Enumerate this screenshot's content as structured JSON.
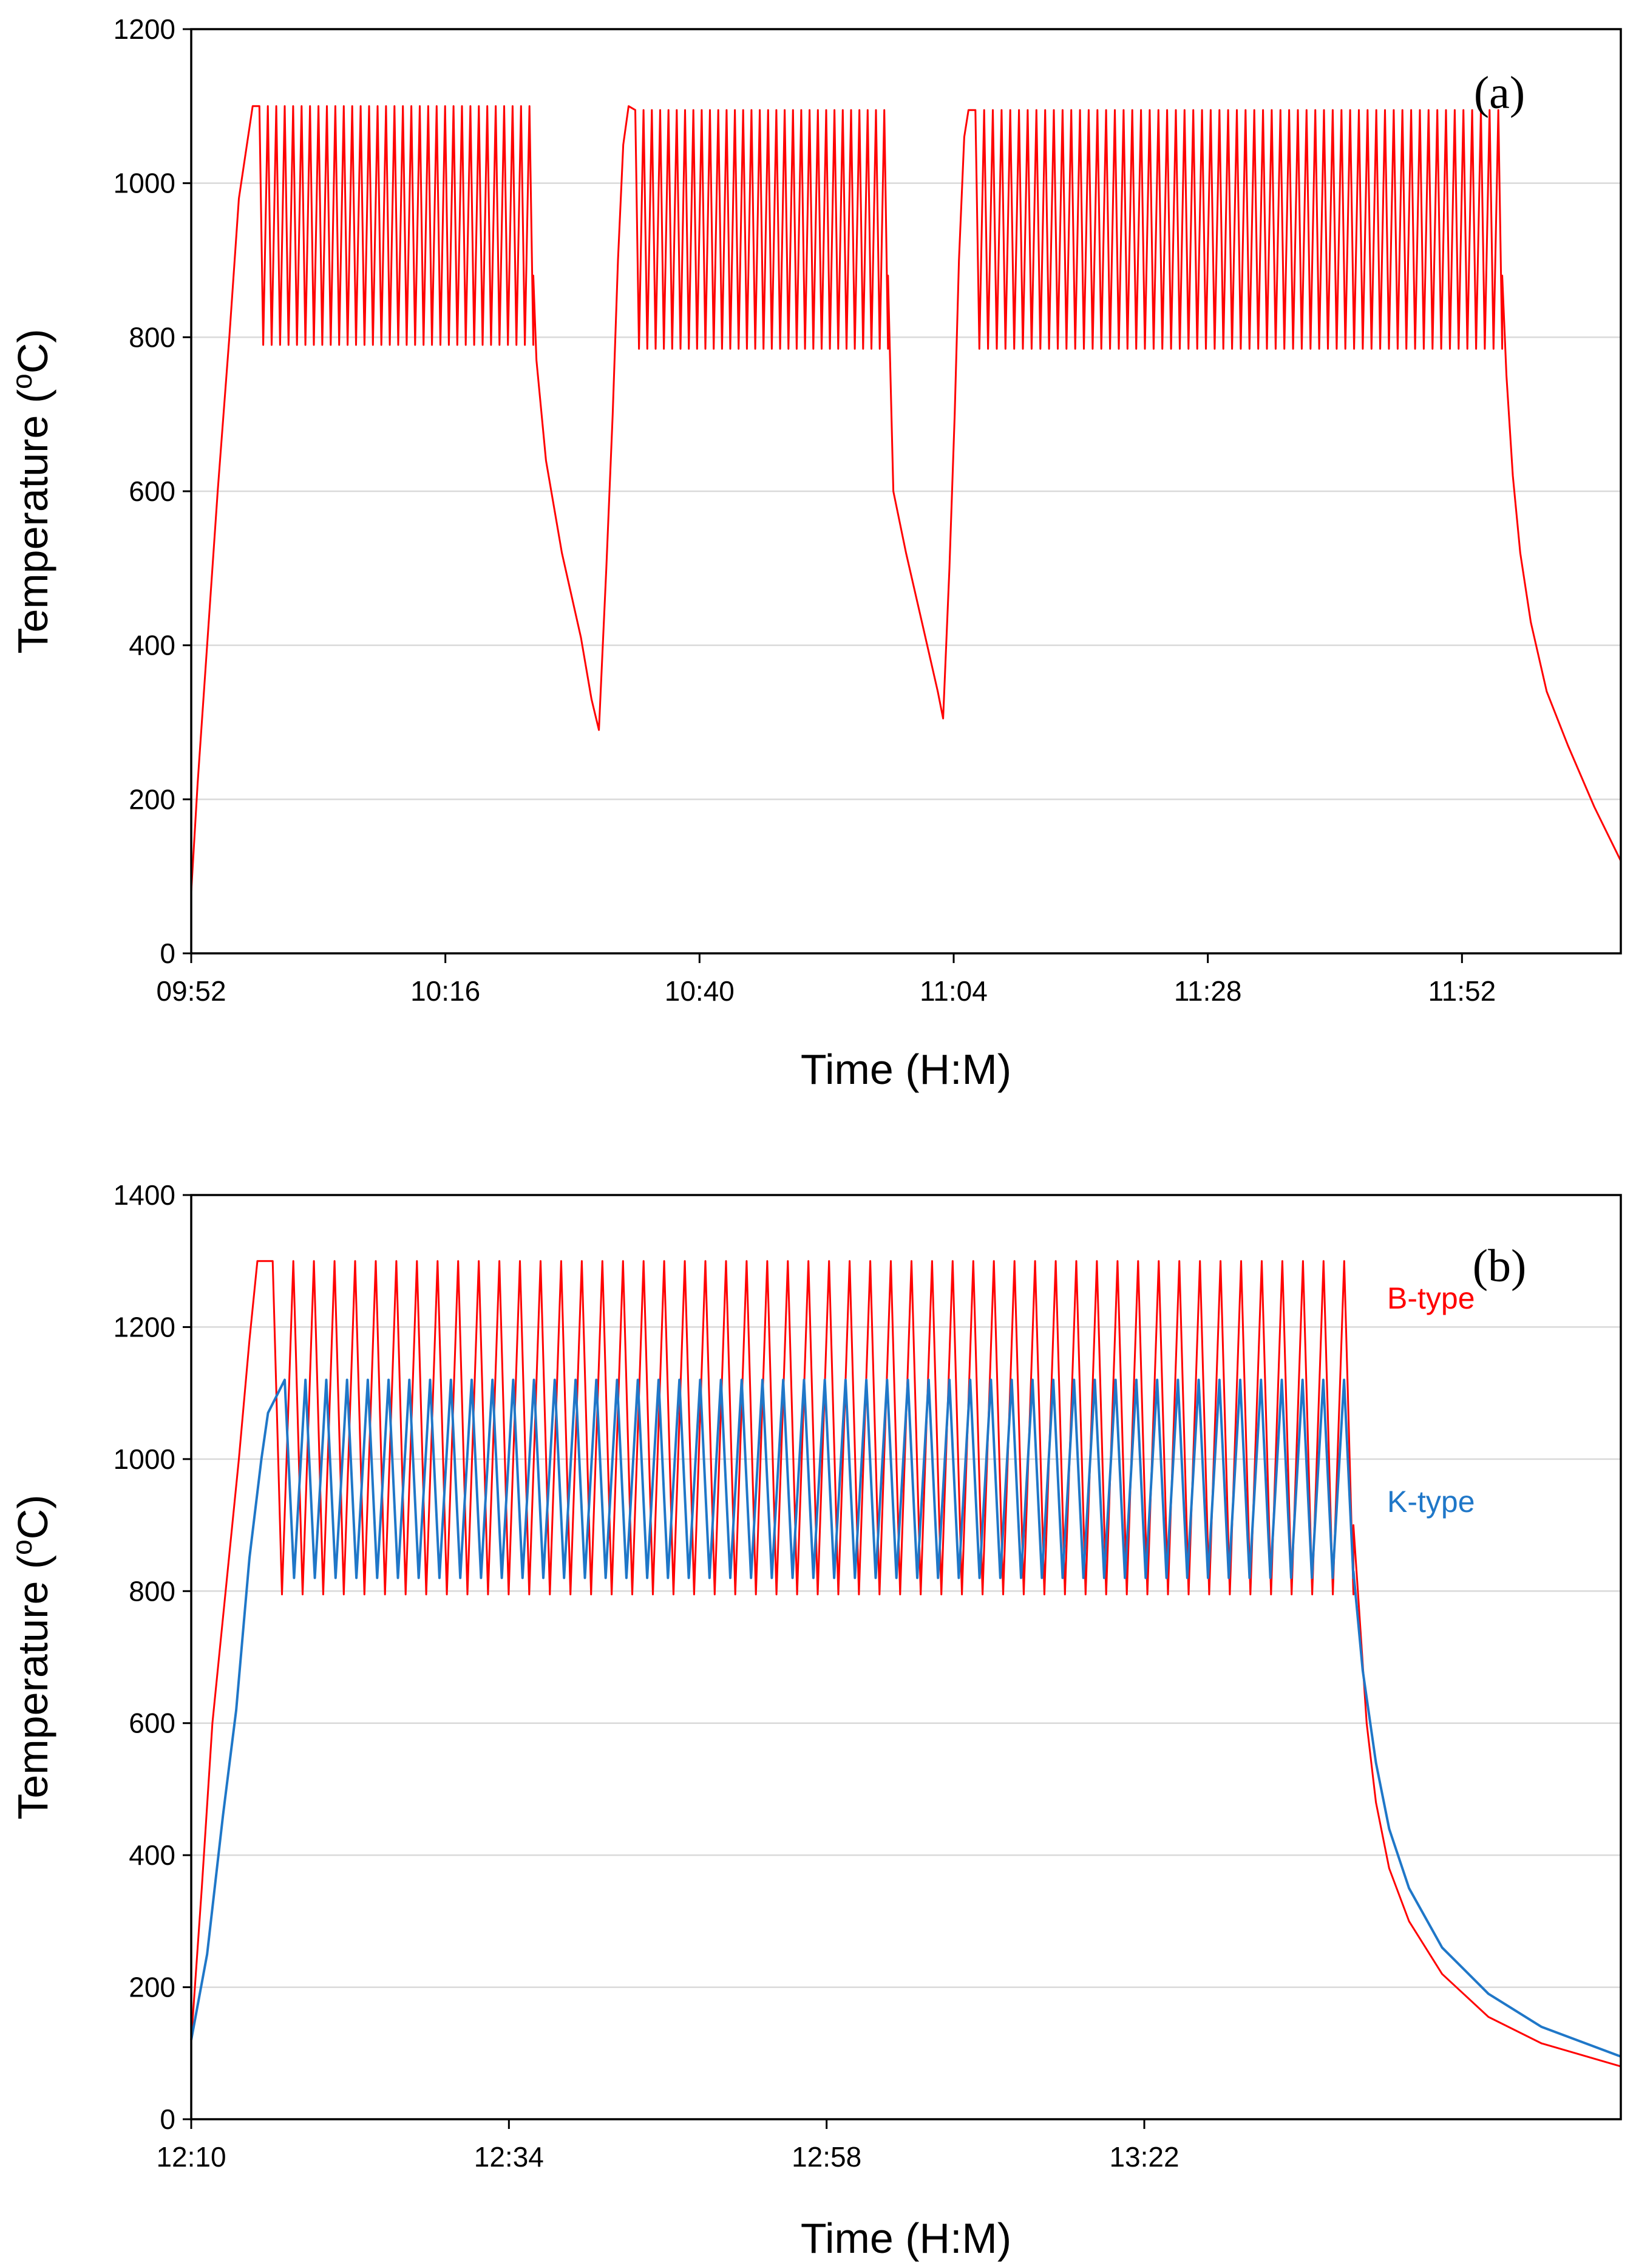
{
  "chart_data": [
    {
      "panel": "(a)",
      "type": "line",
      "xlabel": "Time (H:M)",
      "ylabel_main": "Temperature (",
      "ylabel_sup": "o",
      "ylabel_end": "C)",
      "ylim": [
        0,
        1200
      ],
      "yticks": [
        0,
        200,
        400,
        600,
        800,
        1000,
        1200
      ],
      "xlim_minutes": [
        592,
        727
      ],
      "xticks": [
        {
          "minute": 592,
          "label": "09:52"
        },
        {
          "minute": 616,
          "label": "10:16"
        },
        {
          "minute": 640,
          "label": "10:40"
        },
        {
          "minute": 664,
          "label": "11:04"
        },
        {
          "minute": 688,
          "label": "11:28"
        },
        {
          "minute": 712,
          "label": "11:52"
        }
      ],
      "series": [
        {
          "name": "B-type",
          "color": "#ff0000",
          "show_label": false,
          "segments": [
            {
              "kind": "ramp",
              "points": [
                [
                  592,
                  80
                ],
                [
                  592.6,
                  220
                ],
                [
                  593.5,
                  400
                ],
                [
                  594.5,
                  600
                ],
                [
                  595.6,
                  800
                ],
                [
                  596.5,
                  980
                ],
                [
                  597.8,
                  1100
                ]
              ]
            },
            {
              "kind": "cycles",
              "t0": 598,
              "t1": 624.3,
              "count": 33,
              "high": 1100,
              "low": 790,
              "end": 880
            },
            {
              "kind": "decay",
              "points": [
                [
                  624.3,
                  880
                ],
                [
                  624.6,
                  770
                ],
                [
                  625.5,
                  640
                ],
                [
                  627,
                  520
                ],
                [
                  628.8,
                  410
                ],
                [
                  629.8,
                  330
                ],
                [
                  630.5,
                  290
                ]
              ]
            },
            {
              "kind": "ramp",
              "points": [
                [
                  630.5,
                  290
                ],
                [
                  631.2,
                  500
                ],
                [
                  631.8,
                  700
                ],
                [
                  632.3,
                  900
                ],
                [
                  632.8,
                  1050
                ],
                [
                  633.3,
                  1100
                ]
              ]
            },
            {
              "kind": "cycles",
              "t0": 633.5,
              "t1": 657.8,
              "count": 31,
              "high": 1095,
              "low": 785,
              "end": 880
            },
            {
              "kind": "decay",
              "points": [
                [
                  657.8,
                  880
                ],
                [
                  658.3,
                  600
                ],
                [
                  659.5,
                  520
                ],
                [
                  661,
                  430
                ],
                [
                  662.5,
                  340
                ],
                [
                  663,
                  305
                ]
              ]
            },
            {
              "kind": "ramp",
              "points": [
                [
                  663,
                  305
                ],
                [
                  663.6,
                  500
                ],
                [
                  664.1,
                  700
                ],
                [
                  664.5,
                  900
                ],
                [
                  665,
                  1060
                ],
                [
                  665.4,
                  1095
                ]
              ]
            },
            {
              "kind": "cycles",
              "t0": 665.6,
              "t1": 715.8,
              "count": 61,
              "high": 1095,
              "low": 785,
              "end": 880
            },
            {
              "kind": "decay",
              "points": [
                [
                  715.8,
                  880
                ],
                [
                  716.2,
                  750
                ],
                [
                  716.8,
                  620
                ],
                [
                  717.5,
                  520
                ],
                [
                  718.5,
                  430
                ],
                [
                  720,
                  340
                ],
                [
                  722,
                  270
                ],
                [
                  724.5,
                  190
                ],
                [
                  727,
                  120
                ]
              ]
            }
          ]
        }
      ]
    },
    {
      "panel": "(b)",
      "type": "line",
      "xlabel": "Time (H:M)",
      "ylabel_main": "Temperature (",
      "ylabel_sup": "o",
      "ylabel_end": "C)",
      "ylim": [
        0,
        1400
      ],
      "yticks": [
        0,
        200,
        400,
        600,
        800,
        1000,
        1200,
        1400
      ],
      "xlim_minutes": [
        730,
        838
      ],
      "xticks": [
        {
          "minute": 730,
          "label": "12:10"
        },
        {
          "minute": 754,
          "label": "12:34"
        },
        {
          "minute": 778,
          "label": "12:58"
        },
        {
          "minute": 802,
          "label": "13:22"
        }
      ],
      "series": [
        {
          "name": "B-type",
          "color": "#ff0000",
          "show_label": true,
          "segments": [
            {
              "kind": "ramp",
              "points": [
                [
                  730,
                  120
                ],
                [
                  730.8,
                  350
                ],
                [
                  731.6,
                  600
                ],
                [
                  732.6,
                  800
                ],
                [
                  733.6,
                  1000
                ],
                [
                  734.4,
                  1180
                ],
                [
                  735,
                  1300
                ]
              ]
            },
            {
              "kind": "cycles",
              "t0": 735.3,
              "t1": 817.8,
              "count": 53,
              "high": 1300,
              "low": 795,
              "end": 900
            },
            {
              "kind": "decay",
              "points": [
                [
                  817.8,
                  900
                ],
                [
                  818.2,
                  780
                ],
                [
                  818.8,
                  600
                ],
                [
                  819.5,
                  480
                ],
                [
                  820.5,
                  380
                ],
                [
                  822,
                  300
                ],
                [
                  824.5,
                  220
                ],
                [
                  828,
                  155
                ],
                [
                  832,
                  115
                ],
                [
                  838,
                  80
                ]
              ]
            }
          ]
        },
        {
          "name": "K-type",
          "color": "#1f77c8",
          "show_label": true,
          "segments": [
            {
              "kind": "ramp",
              "points": [
                [
                  730,
                  120
                ],
                [
                  731.2,
                  250
                ],
                [
                  732.4,
                  460
                ],
                [
                  733.4,
                  620
                ],
                [
                  734.4,
                  850
                ],
                [
                  735.3,
                  1000
                ],
                [
                  735.8,
                  1070
                ]
              ]
            },
            {
              "kind": "cycles",
              "t0": 736.2,
              "t1": 817.8,
              "count": 52,
              "high": 1120,
              "low": 820,
              "end": 830
            },
            {
              "kind": "decay",
              "points": [
                [
                  817.8,
                  830
                ],
                [
                  818.5,
                  680
                ],
                [
                  819.5,
                  540
                ],
                [
                  820.5,
                  440
                ],
                [
                  822,
                  350
                ],
                [
                  824.5,
                  260
                ],
                [
                  828,
                  190
                ],
                [
                  832,
                  140
                ],
                [
                  838,
                  95
                ]
              ]
            }
          ]
        }
      ]
    }
  ]
}
